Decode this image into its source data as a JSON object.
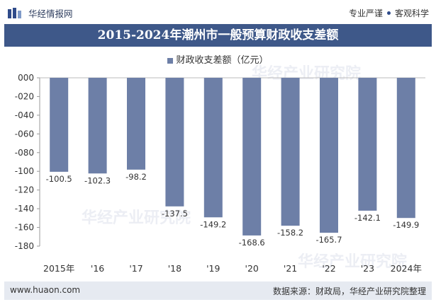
{
  "header": {
    "brand_name": "华经情报网",
    "tagline_left": "专业严谨",
    "tagline_right": "客观科学"
  },
  "watermark": {
    "text": "华经产业研究院",
    "url": "www.huaon.com"
  },
  "footer": {
    "website": "www.huaon.com",
    "source": "数据来源：财政局，华经产业研究院整理"
  },
  "colors": {
    "title_bar": "#3e5889",
    "bar": "#6d7fa7",
    "footer_bg": "#e6eaf1"
  },
  "chart_data": {
    "type": "bar",
    "title": "2015-2024年潮州市一般预算财政收支差额",
    "categories": [
      "2015年",
      "'16",
      "'17",
      "'18",
      "'19",
      "'20",
      "'21",
      "'22",
      "'23",
      "2024年"
    ],
    "series": [
      {
        "name": "财政收支差额（亿元）",
        "values": [
          -100.5,
          -102.3,
          -98.2,
          -137.5,
          -149.2,
          -168.6,
          -158.2,
          -165.7,
          -142.1,
          -149.9
        ],
        "labels": [
          "-100.5",
          "-102.3",
          "-98.2",
          "-137.5",
          "-149.2",
          "-168.6",
          "-158.2",
          "-165.7",
          "-142.1",
          "-149.9"
        ]
      }
    ],
    "ylim": [
      -180,
      0
    ],
    "yticks": [
      0,
      -20,
      -40,
      -60,
      -80,
      -100,
      -120,
      -140,
      -160,
      -180
    ],
    "ytick_labels": [
      "000",
      "-020",
      "-040",
      "-060",
      "-080",
      "-100",
      "-120",
      "-140",
      "-160",
      "-180"
    ],
    "xlabel": "",
    "ylabel": "",
    "legend_position": "top-center",
    "grid": false
  }
}
